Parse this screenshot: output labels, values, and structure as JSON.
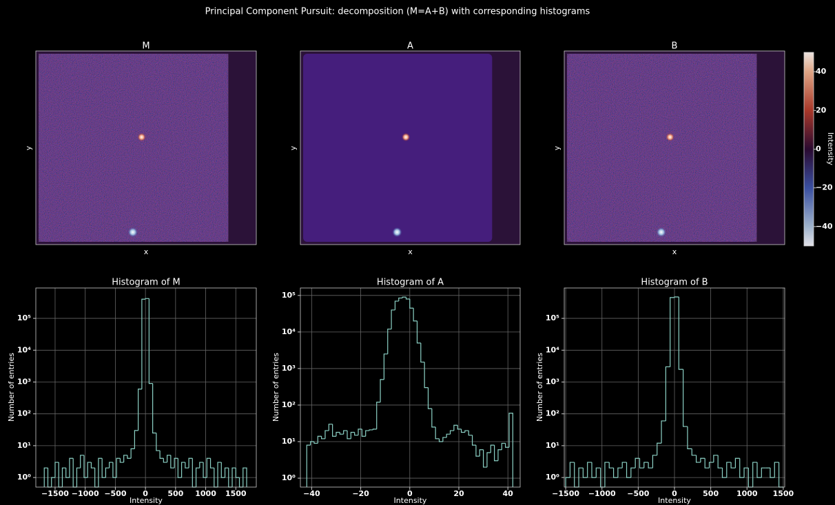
{
  "title": "Principal Component Pursuit: decomposition (M=A+B) with corresponding histograms",
  "chart_data": [
    {
      "type": "image",
      "title": "M",
      "xlabel": "x",
      "ylabel": "y"
    },
    {
      "type": "image",
      "title": "A",
      "xlabel": "x",
      "ylabel": "y"
    },
    {
      "type": "image",
      "title": "B",
      "xlabel": "x",
      "ylabel": "y"
    },
    {
      "type": "histogram",
      "title": "Histogram of M",
      "xlabel": "Intensity",
      "ylabel": "Number of entries",
      "color": "#8dd3c7",
      "log_y": true,
      "grid": true,
      "bins": [
        -1680,
        -1620,
        -1560,
        -1500,
        -1440,
        -1380,
        -1320,
        -1260,
        -1200,
        -1140,
        -1080,
        -1020,
        -960,
        -900,
        -840,
        -780,
        -720,
        -660,
        -600,
        -540,
        -480,
        -420,
        -360,
        -300,
        -240,
        -180,
        -120,
        -60,
        0,
        60,
        120,
        180,
        240,
        300,
        360,
        420,
        480,
        540,
        600,
        660,
        720,
        780,
        840,
        900,
        960,
        1020,
        1080,
        1140,
        1200,
        1260,
        1320,
        1380,
        1440,
        1500,
        1560,
        1620,
        1680
      ],
      "counts": [
        2,
        0,
        1,
        3,
        0,
        2,
        1,
        4,
        0,
        2,
        5,
        1,
        3,
        2,
        0,
        4,
        1,
        2,
        3,
        1,
        4,
        3,
        5,
        4,
        8,
        30,
        600,
        400000,
        420000,
        900,
        25,
        7,
        4,
        3,
        5,
        2,
        4,
        1,
        3,
        2,
        4,
        0,
        2,
        3,
        1,
        4,
        2,
        0,
        3,
        1,
        2,
        0,
        2,
        1,
        0,
        2
      ],
      "xlim": [
        -1820,
        1840
      ],
      "ylim": [
        0.5,
        900000
      ],
      "xticks": [
        {
          "value": -1500,
          "label": "−1500"
        },
        {
          "value": -1000,
          "label": "−1000"
        },
        {
          "value": -500,
          "label": "−500"
        },
        0,
        500,
        1000,
        1500
      ],
      "yticks": [
        {
          "value": 1,
          "label": "10⁰"
        },
        {
          "value": 10,
          "label": "10¹"
        },
        {
          "value": 100,
          "label": "10²"
        },
        {
          "value": 1000,
          "label": "10³"
        },
        {
          "value": 10000,
          "label": "10⁴"
        },
        {
          "value": 100000,
          "label": "10⁵"
        }
      ]
    },
    {
      "type": "histogram",
      "title": "Histogram of A",
      "xlabel": "Intensity",
      "ylabel": "Number of entries",
      "color": "#8dd3c7",
      "log_y": true,
      "grid": true,
      "bins": [
        -42,
        -40.5,
        -39,
        -37.5,
        -36,
        -34.5,
        -33,
        -31.5,
        -30,
        -28.5,
        -27,
        -25.5,
        -24,
        -22.5,
        -21,
        -19.5,
        -18,
        -16.5,
        -15,
        -13.5,
        -12,
        -10.5,
        -9,
        -7.5,
        -6,
        -4.5,
        -3,
        -1.5,
        0,
        1.5,
        3,
        4.5,
        6,
        7.5,
        9,
        10.5,
        12,
        13.5,
        15,
        16.5,
        18,
        19.5,
        21,
        22.5,
        24,
        25.5,
        27,
        28.5,
        30,
        31.5,
        33,
        34.5,
        36,
        37.5,
        39,
        40.5,
        42
      ],
      "counts": [
        8,
        10,
        9,
        14,
        12,
        20,
        30,
        14,
        18,
        16,
        20,
        12,
        18,
        15,
        22,
        14,
        20,
        21,
        22,
        120,
        500,
        2500,
        12000,
        40000,
        70000,
        85000,
        90000,
        80000,
        45000,
        20000,
        5000,
        1500,
        300,
        80,
        25,
        12,
        10,
        13,
        16,
        20,
        28,
        22,
        18,
        20,
        15,
        8,
        4,
        6,
        2,
        5,
        8,
        3,
        6,
        9,
        7,
        60
      ],
      "xlim": [
        -44.6,
        45
      ],
      "ylim": [
        0.57,
        160000
      ],
      "xticks": [
        {
          "value": -40,
          "label": "−40"
        },
        {
          "value": -20,
          "label": "−20"
        },
        0,
        20,
        40
      ],
      "yticks": [
        {
          "value": 1,
          "label": "10⁰"
        },
        {
          "value": 10,
          "label": "10¹"
        },
        {
          "value": 100,
          "label": "10²"
        },
        {
          "value": 1000,
          "label": "10³"
        },
        {
          "value": 10000,
          "label": "10⁴"
        },
        {
          "value": 100000,
          "label": "10⁵"
        }
      ]
    },
    {
      "type": "histogram",
      "title": "Histogram of B",
      "xlabel": "Intensity",
      "ylabel": "Number of entries",
      "color": "#8dd3c7",
      "log_y": true,
      "grid": true,
      "bins": [
        -1500,
        -1440,
        -1380,
        -1320,
        -1260,
        -1200,
        -1140,
        -1080,
        -1020,
        -960,
        -900,
        -840,
        -780,
        -720,
        -660,
        -600,
        -540,
        -480,
        -420,
        -360,
        -300,
        -240,
        -180,
        -120,
        -60,
        0,
        60,
        120,
        180,
        240,
        300,
        360,
        420,
        480,
        540,
        600,
        660,
        720,
        780,
        840,
        900,
        960,
        1020,
        1080,
        1140,
        1200,
        1260,
        1320,
        1380,
        1440,
        1500
      ],
      "counts": [
        1,
        3,
        0,
        2,
        1,
        3,
        1,
        2,
        0,
        3,
        2,
        1,
        2,
        3,
        1,
        2,
        4,
        2,
        3,
        2,
        5,
        12,
        60,
        3000,
        450000,
        470000,
        2500,
        40,
        8,
        5,
        3,
        4,
        2,
        3,
        5,
        2,
        1,
        3,
        2,
        4,
        1,
        2,
        0,
        3,
        1,
        2,
        2,
        1,
        3,
        0
      ],
      "xlim": [
        -1520,
        1520
      ],
      "ylim": [
        0.5,
        900000
      ],
      "xticks": [
        {
          "value": -1500,
          "label": "−1500"
        },
        {
          "value": -1000,
          "label": "−1000"
        },
        {
          "value": -500,
          "label": "−500"
        },
        0,
        500,
        1000,
        1500
      ],
      "yticks": [
        {
          "value": 1,
          "label": "10⁰"
        },
        {
          "value": 10,
          "label": "10¹"
        },
        {
          "value": 100,
          "label": "10²"
        },
        {
          "value": 1000,
          "label": "10³"
        },
        {
          "value": 10000,
          "label": "10⁴"
        },
        {
          "value": 100000,
          "label": "10⁵"
        }
      ]
    }
  ],
  "colorbar": {
    "label": "Intensity",
    "lim": [
      -50,
      50
    ],
    "ticks": [
      40,
      20,
      0,
      {
        "value": -20,
        "label": "−20"
      },
      {
        "value": -40,
        "label": "−40"
      }
    ]
  }
}
